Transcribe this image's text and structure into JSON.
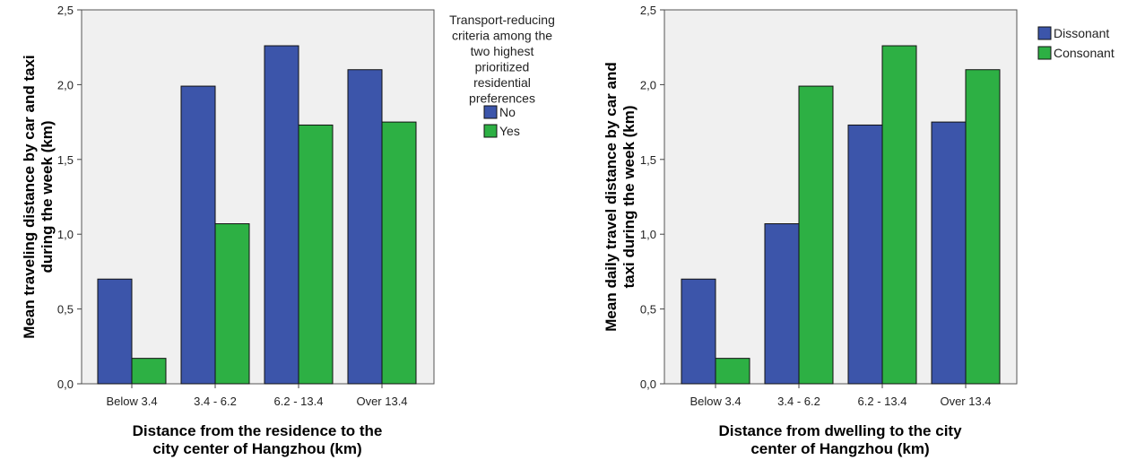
{
  "chart_data": [
    {
      "type": "bar",
      "title": "",
      "categories": [
        "Below 3.4",
        "3.4 - 6.2",
        "6.2 - 13.4",
        "Over 13.4"
      ],
      "series": [
        {
          "name": "No",
          "color": "#3c55aa",
          "values": [
            0.7,
            1.99,
            2.26,
            2.1
          ]
        },
        {
          "name": "Yes",
          "color": "#2db044",
          "values": [
            0.17,
            1.07,
            1.73,
            1.75
          ]
        }
      ],
      "ylim": [
        0,
        2.5
      ],
      "yticks": [
        "0,0",
        "0,5",
        "1,0",
        "1,5",
        "2,0",
        "2,5"
      ],
      "ytick_values": [
        0,
        0.5,
        1.0,
        1.5,
        2.0,
        2.5
      ],
      "ylabel_lines": [
        "Mean traveling distance by car and taxi",
        "during the week (km)"
      ],
      "xlabel_lines": [
        "Distance from the residence to the",
        "city center of Hangzhou (km)"
      ],
      "legend_title_lines": [
        "Transport-reducing",
        "criteria among the",
        "two highest",
        "prioritized",
        "residential",
        "preferences"
      ],
      "legend_position": "right",
      "grid": false,
      "background": "#f0f0f0"
    },
    {
      "type": "bar",
      "title": "",
      "categories": [
        "Below 3.4",
        "3.4 - 6.2",
        "6.2 - 13.4",
        "Over 13.4"
      ],
      "series": [
        {
          "name": "Dissonant",
          "color": "#3c55aa",
          "values": [
            0.7,
            1.07,
            1.73,
            1.75
          ]
        },
        {
          "name": "Consonant",
          "color": "#2db044",
          "values": [
            0.17,
            1.99,
            2.26,
            2.1
          ]
        }
      ],
      "ylim": [
        0,
        2.5
      ],
      "yticks": [
        "0,0",
        "0,5",
        "1,0",
        "1,5",
        "2,0",
        "2,5"
      ],
      "ytick_values": [
        0,
        0.5,
        1.0,
        1.5,
        2.0,
        2.5
      ],
      "ylabel_lines": [
        "Mean daily travel distance by car and",
        "taxi during the week (km)"
      ],
      "xlabel_lines": [
        "Distance from dwelling to the city",
        "center of Hangzhou (km)"
      ],
      "legend_title_lines": [],
      "legend_position": "top-right",
      "grid": false,
      "background": "#f0f0f0"
    }
  ]
}
